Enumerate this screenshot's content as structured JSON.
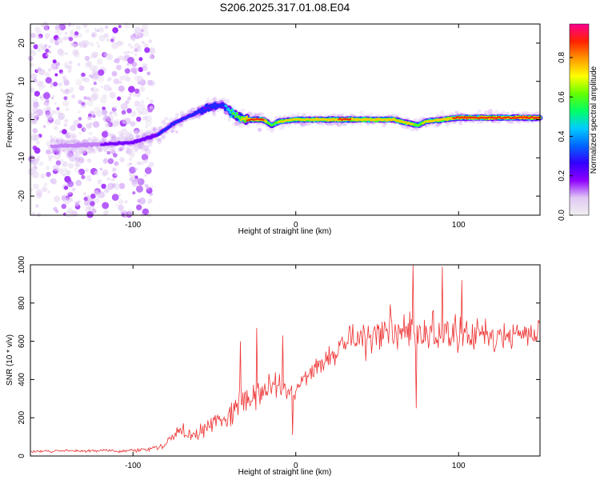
{
  "figure": {
    "title": "S206.2025.317.01.08.E04"
  },
  "chart_data": [
    {
      "type": "heatmap",
      "name": "spectrogram",
      "xlabel": "Height of straight line (km)",
      "ylabel": "Frequency (Hz)",
      "xlim": [
        -163,
        150
      ],
      "ylim": [
        -25,
        25
      ],
      "xticks": [
        -100,
        0,
        100
      ],
      "yticks": [
        -20,
        -10,
        0,
        10,
        20
      ],
      "grid": false,
      "colorbar": {
        "label": "Normalized spectral amplitude",
        "range": [
          0,
          0.97
        ],
        "ticks": [
          0.0,
          0.2,
          0.4,
          0.6,
          0.8
        ],
        "colormap": [
          "#f0f0f0",
          "#e0c8f4",
          "#8f00ff",
          "#3300ff",
          "#0066ff",
          "#00ccff",
          "#00ff66",
          "#66ff00",
          "#ffff00",
          "#ff9900",
          "#ff2200",
          "#ff0090"
        ]
      },
      "ridge": {
        "x": [
          -150,
          -120,
          -100,
          -85,
          -75,
          -65,
          -55,
          -45,
          -40,
          -35,
          -30,
          -20,
          -15,
          -10,
          0,
          10,
          20,
          30,
          40,
          50,
          60,
          70,
          75,
          80,
          90,
          100,
          110,
          120,
          130,
          140,
          150
        ],
        "freq": [
          -7,
          -6.5,
          -6,
          -4,
          -1,
          1,
          3,
          4,
          2,
          0.5,
          0,
          0,
          -1.5,
          -0.5,
          0,
          0,
          0,
          0,
          0,
          0,
          0,
          -1,
          -1.5,
          -0.5,
          0,
          0.5,
          0.5,
          0.5,
          0.5,
          0.5,
          0.5
        ],
        "amplitude": [
          0.15,
          0.2,
          0.25,
          0.3,
          0.3,
          0.3,
          0.4,
          0.4,
          0.6,
          0.7,
          0.9,
          0.9,
          0.6,
          0.8,
          0.8,
          0.8,
          0.85,
          0.9,
          0.85,
          0.85,
          0.85,
          0.8,
          0.7,
          0.8,
          0.85,
          0.9,
          0.9,
          0.9,
          0.9,
          0.9,
          0.9
        ]
      },
      "noise_region": {
        "x": [
          -163,
          -88
        ],
        "amplitude": [
          0.02,
          0.12
        ]
      }
    },
    {
      "type": "line",
      "name": "snr",
      "xlabel": "Height of straight line (km)",
      "ylabel": "SNR (10 * v/v)",
      "xlim": [
        -163,
        150
      ],
      "ylim": [
        0,
        1000
      ],
      "xticks": [
        -100,
        0,
        100
      ],
      "yticks": [
        0,
        200,
        400,
        600,
        800,
        1000
      ],
      "grid": false,
      "series": [
        {
          "color": "#ee3333",
          "x": [
            -163,
            -150,
            -140,
            -130,
            -120,
            -110,
            -100,
            -90,
            -80,
            -75,
            -70,
            -65,
            -60,
            -55,
            -50,
            -45,
            -40,
            -35,
            -30,
            -25,
            -20,
            -15,
            -10,
            -5,
            0,
            5,
            10,
            15,
            20,
            25,
            30,
            35,
            40,
            45,
            50,
            55,
            60,
            65,
            70,
            75,
            80,
            85,
            90,
            95,
            100,
            105,
            110,
            115,
            120,
            125,
            130,
            135,
            140,
            145,
            150
          ],
          "y": [
            25,
            25,
            28,
            25,
            30,
            25,
            30,
            35,
            60,
            110,
            130,
            100,
            120,
            150,
            180,
            200,
            230,
            280,
            300,
            320,
            360,
            380,
            360,
            330,
            320,
            400,
            450,
            470,
            520,
            540,
            580,
            600,
            620,
            630,
            640,
            650,
            650,
            640,
            660,
            640,
            650,
            650,
            640,
            630,
            640,
            620,
            640,
            650,
            620,
            640,
            630,
            620,
            640,
            620,
            630
          ],
          "noise_amplitude": [
            10,
            10,
            10,
            10,
            10,
            10,
            10,
            15,
            30,
            50,
            60,
            60,
            60,
            70,
            70,
            90,
            110,
            140,
            150,
            120,
            110,
            110,
            100,
            80,
            80,
            70,
            70,
            80,
            90,
            100,
            110,
            110,
            120,
            130,
            130,
            140,
            150,
            160,
            170,
            170,
            160,
            160,
            150,
            150,
            150,
            140,
            140,
            140,
            130,
            130,
            130,
            120,
            120,
            120,
            120
          ]
        }
      ],
      "spikes": [
        {
          "x": -24,
          "y": 670
        },
        {
          "x": -34,
          "y": 600
        },
        {
          "x": -8,
          "y": 630
        },
        {
          "x": 72,
          "y": 1000
        },
        {
          "x": 74,
          "y": 250
        },
        {
          "x": 90,
          "y": 990
        },
        {
          "x": 102,
          "y": 920
        },
        {
          "x": -2,
          "y": 110
        }
      ]
    }
  ]
}
